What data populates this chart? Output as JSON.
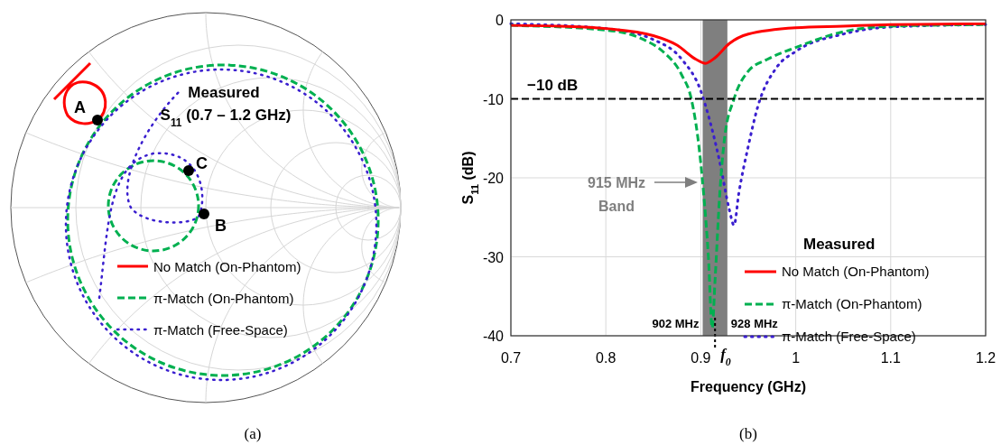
{
  "chart_data": [
    {
      "type": "other",
      "title": "Measured",
      "subtitle": "S$_{11}$ (0.7 – 1.2 GHz)",
      "annotations": [
        "A",
        "B",
        "C",
        "(a)"
      ],
      "legend": "bottom",
      "series": [
        {
          "name": "No Match (On-Phantom)",
          "color": "#ff0000",
          "line_style": "solid"
        },
        {
          "name": "π-Match (On-Phantom)",
          "color": "#00b050",
          "line_style": "dashed"
        },
        {
          "name": "π-Match (Free-Space)",
          "color": "#3a1fcf",
          "line_style": "dotted"
        }
      ]
    },
    {
      "type": "line",
      "xlabel": "Frequency (GHz)",
      "ylabel": "S$_{11}$ (dB)",
      "legend_title": "Measured",
      "legend": "bottom right",
      "grid": true,
      "xlim": [
        0.7,
        1.2
      ],
      "xticks": [
        0.7,
        0.8,
        0.9,
        1,
        1.1,
        1.2
      ],
      "ylim": [
        -40,
        0
      ],
      "yticks": [
        -40,
        -30,
        -20,
        -10,
        0
      ],
      "series": [
        {
          "name": "No Match (On-Phantom)",
          "color": "#ff0000",
          "line_style": "solid",
          "x": [
            0.7,
            0.75,
            0.8,
            0.85,
            0.875,
            0.895,
            0.905,
            0.915,
            0.93,
            0.95,
            1.0,
            1.05,
            1.1,
            1.2
          ],
          "values": [
            -0.7,
            -0.8,
            -1.1,
            -2.0,
            -3.2,
            -5.0,
            -5.5,
            -4.8,
            -3.0,
            -1.8,
            -1.0,
            -0.8,
            -0.6,
            -0.5
          ]
        },
        {
          "name": "π-Match (On-Phantom)",
          "color": "#00b050",
          "line_style": "dashed",
          "x": [
            0.7,
            0.8,
            0.84,
            0.86,
            0.88,
            0.89,
            0.897,
            0.903,
            0.908,
            0.912,
            0.915,
            0.92,
            0.925,
            0.935,
            0.95,
            0.97,
            1.0,
            1.05,
            1.1,
            1.2
          ],
          "values": [
            -0.7,
            -1.3,
            -2.5,
            -4,
            -7,
            -10,
            -15,
            -22,
            -30,
            -39,
            -33,
            -22,
            -15,
            -10,
            -6.5,
            -5,
            -3.5,
            -1.5,
            -0.8,
            -0.6
          ]
        },
        {
          "name": "π-Match (Free-Space)",
          "color": "#3a1fcf",
          "line_style": "dotted",
          "x": [
            0.7,
            0.8,
            0.85,
            0.88,
            0.9,
            0.91,
            0.92,
            0.93,
            0.935,
            0.94,
            0.95,
            0.96,
            0.98,
            1.0,
            1.05,
            1.1,
            1.2
          ],
          "values": [
            -0.5,
            -1.1,
            -2.5,
            -5,
            -9,
            -13,
            -18,
            -24,
            -26,
            -22,
            -16,
            -11,
            -6,
            -4,
            -1.8,
            -0.9,
            -0.6
          ]
        }
      ],
      "bands": [
        {
          "axis": "x",
          "from": 0.902,
          "to": 0.928,
          "color": "#7f7f7f"
        }
      ],
      "ref_lines": [
        {
          "axis": "y",
          "value": -10,
          "label": "−10 dB",
          "line_style": "dashed"
        },
        {
          "axis": "x",
          "value": 0.915,
          "label": "f$_{0}$",
          "line_style": "dotted"
        }
      ],
      "annotations": [
        {
          "text": "902 MHz",
          "x": 0.902,
          "y": -38.5
        },
        {
          "text": "928 MHz",
          "x": 0.928,
          "y": -38.5
        },
        "915 MHz\nBand",
        "(b)"
      ]
    }
  ]
}
